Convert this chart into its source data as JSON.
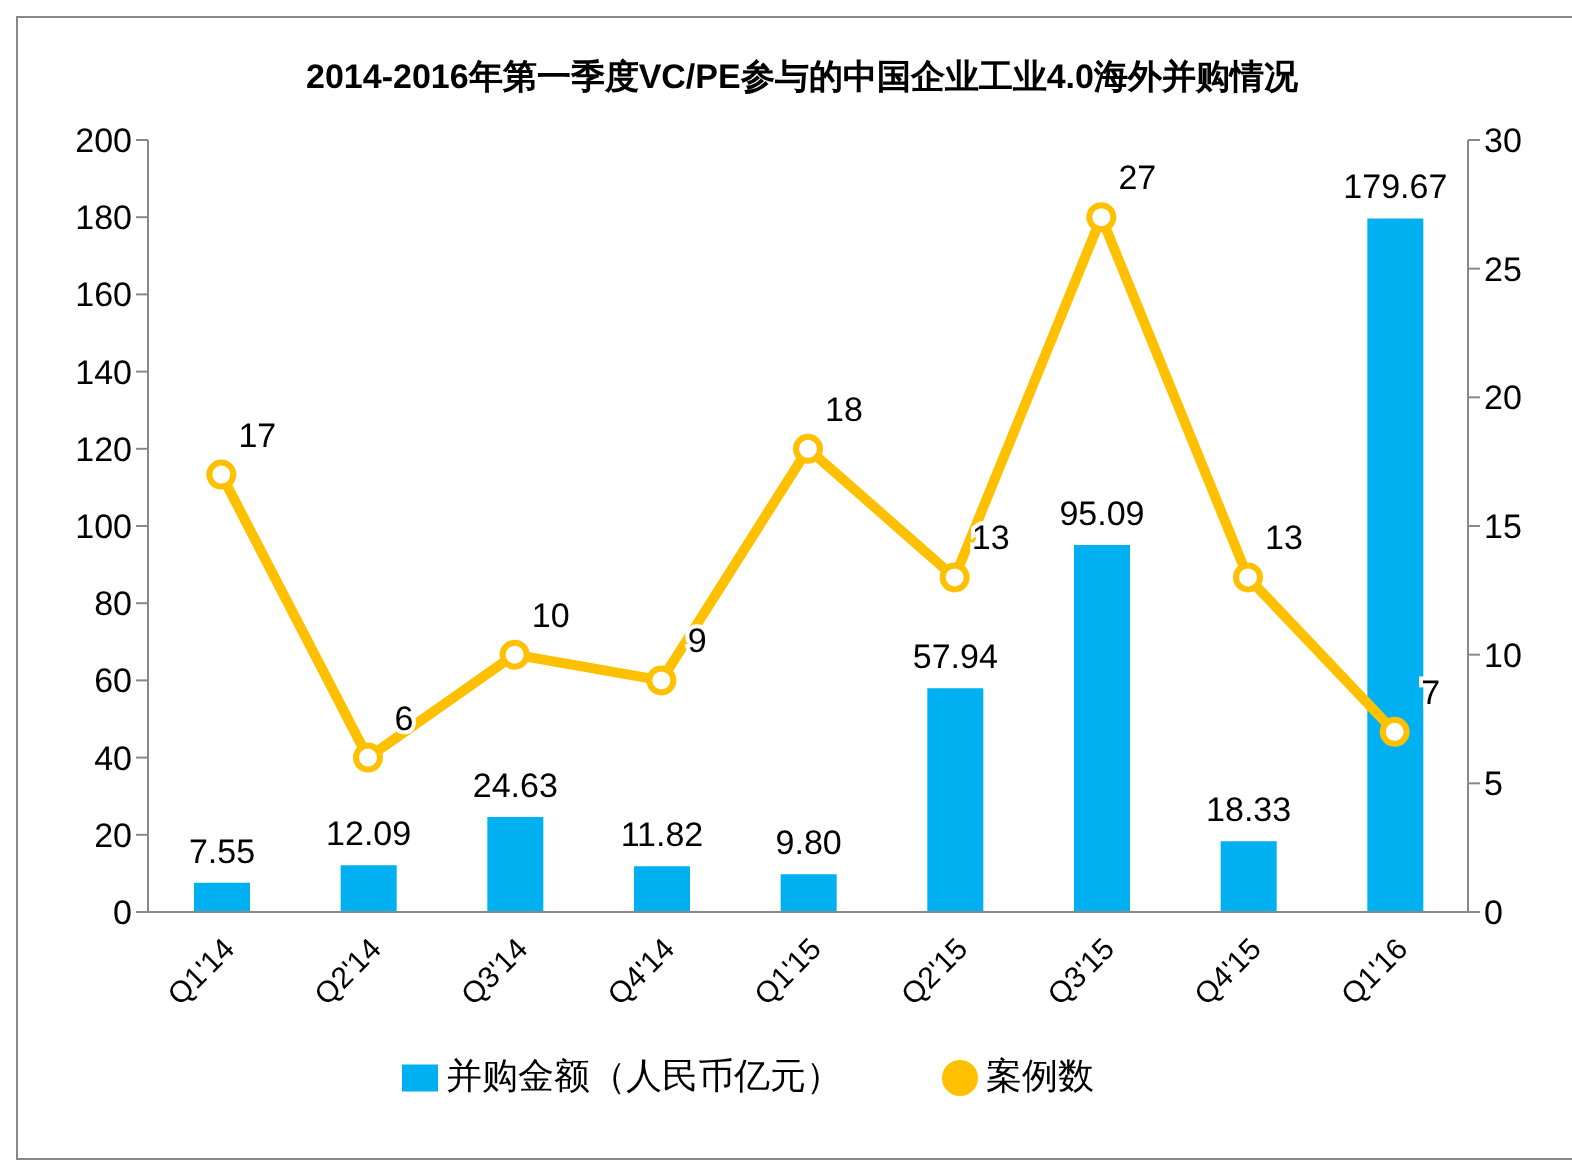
{
  "chart_data": {
    "type": "bar",
    "title": "2014-2016年第一季度VC/PE参与的中国企业工业4.0海外并购情况",
    "categories": [
      "Q1'14",
      "Q2'14",
      "Q3'14",
      "Q4'14",
      "Q1'15",
      "Q2'15",
      "Q3'15",
      "Q4'15",
      "Q1'16"
    ],
    "series": [
      {
        "name": "并购金额（人民币亿元）",
        "color": "#00b0f0",
        "values": [
          7.55,
          12.09,
          24.63,
          11.82,
          9.8,
          57.94,
          95.09,
          18.33,
          179.67
        ],
        "value_labels": [
          "7.55",
          "12.09",
          "24.63",
          "11.82",
          "9.80",
          "57.94",
          "95.09",
          "18.33",
          "179.67"
        ]
      },
      {
        "name": "案例数",
        "type": "line",
        "axis": "y2",
        "color": "#ffc000",
        "values": [
          17,
          6,
          10,
          9,
          18,
          13,
          27,
          13,
          7
        ],
        "value_labels": [
          "17",
          "6",
          "10",
          "9",
          "18",
          "13",
          "27",
          "13",
          "7"
        ]
      }
    ],
    "ylim": [
      0,
      200
    ],
    "yticks": [
      0,
      20,
      40,
      60,
      80,
      100,
      120,
      140,
      160,
      180,
      200
    ],
    "y2lim": [
      0,
      30
    ],
    "y2ticks": [
      0,
      5,
      10,
      15,
      20,
      25,
      30
    ],
    "grid": false,
    "legend": "bottom",
    "marker": "circle",
    "line_style": "solid"
  }
}
